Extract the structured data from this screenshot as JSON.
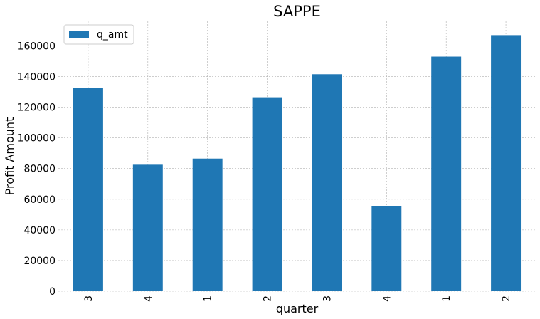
{
  "chart_data": {
    "type": "bar",
    "title": "SAPPE",
    "xlabel": "quarter",
    "ylabel": "Profit Amount",
    "categories": [
      "3",
      "4",
      "1",
      "2",
      "3",
      "4",
      "1",
      "2"
    ],
    "series": [
      {
        "name": "q_amt",
        "color": "#1f77b4",
        "values": [
          132500,
          82500,
          86500,
          126500,
          141500,
          55500,
          153000,
          167000
        ]
      }
    ],
    "ylim": [
      0,
      176000
    ],
    "yticks": [
      0,
      20000,
      40000,
      60000,
      80000,
      100000,
      120000,
      140000,
      160000
    ],
    "grid": true,
    "legend_position": "top-left"
  }
}
